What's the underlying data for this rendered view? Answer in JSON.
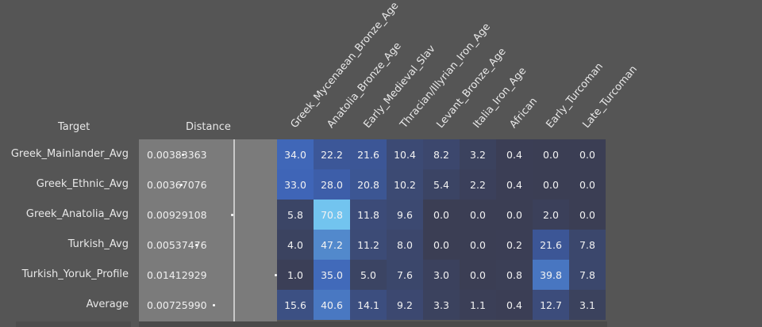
{
  "headers": {
    "target": "Target",
    "distance": "Distance"
  },
  "chart_data": {
    "type": "heatmap",
    "title": "",
    "columns": [
      "Greek_Mycenaean_Bronze_Age",
      "Anatolia_Bronze_Age",
      "Early_Medieval_Slav",
      "Thracian/Illyrian_Iron_Age",
      "Levant_Bronze_Age",
      "Italia_Iron_Age",
      "African",
      "Early_Turcoman",
      "Late_Turcoman"
    ],
    "rows": [
      {
        "target": "Greek_Mainlander_Avg",
        "distance": "0.00383363",
        "distance_value": 0.00383363,
        "values": [
          "34.0",
          "22.2",
          "21.6",
          "10.4",
          "8.2",
          "3.2",
          "0.4",
          "0.0",
          "0.0"
        ]
      },
      {
        "target": "Greek_Ethnic_Avg",
        "distance": "0.00367076",
        "distance_value": 0.00367076,
        "values": [
          "33.0",
          "28.0",
          "20.8",
          "10.2",
          "5.4",
          "2.2",
          "0.4",
          "0.0",
          "0.0"
        ]
      },
      {
        "target": "Greek_Anatolia_Avg",
        "distance": "0.00929108",
        "distance_value": 0.00929108,
        "values": [
          "5.8",
          "70.8",
          "11.8",
          "9.6",
          "0.0",
          "0.0",
          "0.0",
          "2.0",
          "0.0"
        ]
      },
      {
        "target": "Turkish_Avg",
        "distance": "0.00537476",
        "distance_value": 0.00537476,
        "values": [
          "4.0",
          "47.2",
          "11.2",
          "8.0",
          "0.0",
          "0.0",
          "0.2",
          "21.6",
          "7.8"
        ]
      },
      {
        "target": "Turkish_Yoruk_Profile",
        "distance": "0.01412929",
        "distance_value": 0.01412929,
        "values": [
          "1.0",
          "35.0",
          "5.0",
          "7.6",
          "3.0",
          "0.0",
          "0.8",
          "39.8",
          "7.8"
        ]
      },
      {
        "target": "Average",
        "distance": "0.00725990",
        "distance_value": 0.0072599,
        "values": [
          "15.6",
          "40.6",
          "14.1",
          "9.2",
          "3.3",
          "1.1",
          "0.4",
          "12.7",
          "3.1"
        ]
      }
    ],
    "value_range": [
      0,
      70.8
    ],
    "distance_range": [
      0,
      0.0145
    ],
    "colors": {
      "low": "#3b3e54",
      "mid": "#3d62b5",
      "high": "#72c4ef"
    }
  }
}
